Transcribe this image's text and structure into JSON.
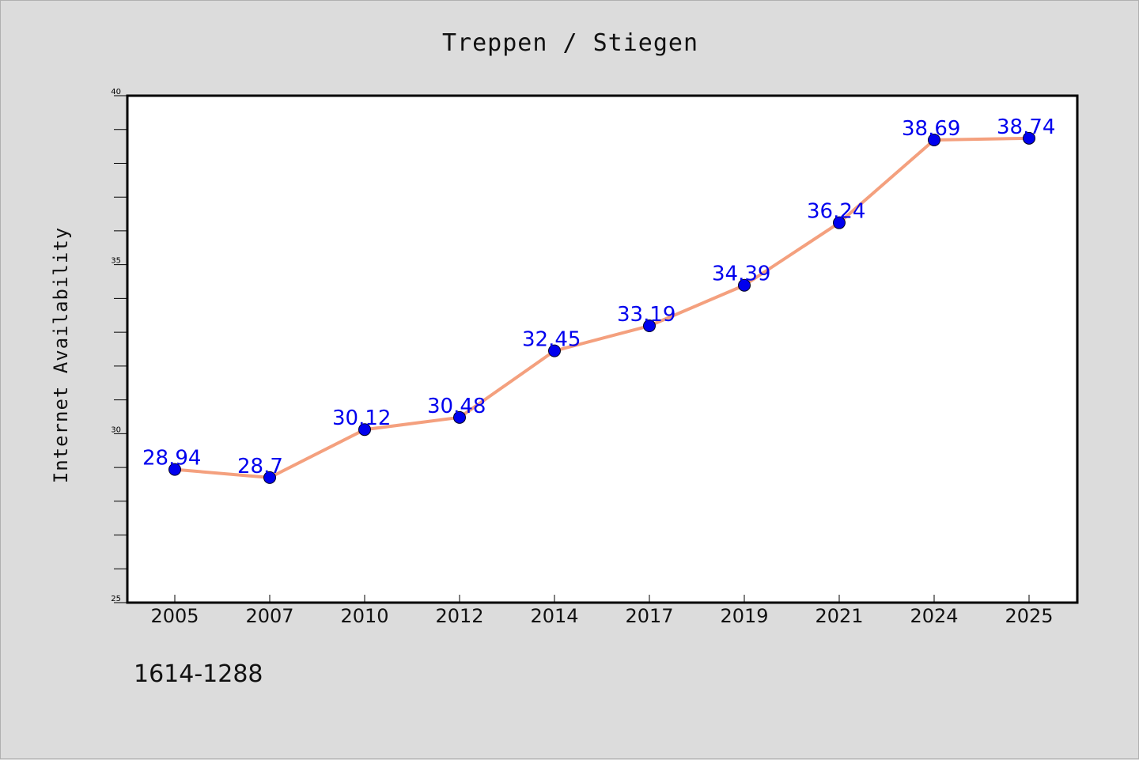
{
  "chart_data": {
    "type": "line",
    "title": "Treppen / Stiegen",
    "xlabel": "",
    "ylabel": "Internet Availability",
    "categories": [
      "2005",
      "2007",
      "2010",
      "2012",
      "2014",
      "2017",
      "2019",
      "2021",
      "2024",
      "2025"
    ],
    "series": [
      {
        "values": [
          28.94,
          28.7,
          30.12,
          30.48,
          32.45,
          33.19,
          34.39,
          36.24,
          38.69,
          38.74
        ],
        "data_labels": [
          "28.94",
          "28.7",
          "30.12",
          "30.48",
          "32.45",
          "33.19",
          "34.39",
          "36.24",
          "38.69",
          "38.74"
        ],
        "line_color": "#f4a07e",
        "marker_color": "#0000ee",
        "label_color": "#0000ee"
      }
    ],
    "ylim": [
      25,
      40
    ],
    "y_ticks": [
      "25",
      "30",
      "35",
      "40"
    ],
    "grid": false,
    "legend": "none",
    "footer": "1614-1288"
  }
}
